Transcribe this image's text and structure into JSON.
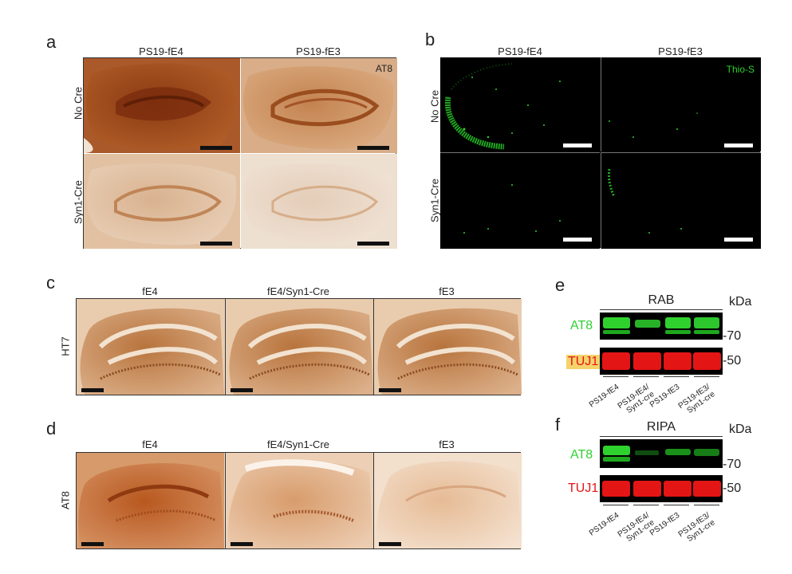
{
  "panels": {
    "a": {
      "letter": "a",
      "columns": [
        "PS19-fE4",
        "PS19-fE3"
      ],
      "rows": [
        "No Cre",
        "Syn1-Cre"
      ],
      "stain": "AT8"
    },
    "b": {
      "letter": "b",
      "columns": [
        "PS19-fE4",
        "PS19-fE3"
      ],
      "rows": [
        "No Cre",
        "Syn1-Cre"
      ],
      "stain": "Thio-S"
    },
    "c": {
      "letter": "c",
      "columns": [
        "fE4",
        "fE4/Syn1-Cre",
        "fE3"
      ],
      "row": "HT7"
    },
    "d": {
      "letter": "d",
      "columns": [
        "fE4",
        "fE4/Syn1-Cre",
        "fE3"
      ],
      "row": "AT8"
    },
    "e": {
      "letter": "e",
      "fraction": "RAB",
      "kda_unit": "kDa",
      "bands": [
        "AT8",
        "TUJ1"
      ],
      "markers": [
        "70",
        "50"
      ],
      "lanes": [
        "PS19-fE4",
        "PS19-fE4/\nSyn1-cre",
        "PS19-fE3",
        "PS19-fE3/\nSyn1-cre"
      ]
    },
    "f": {
      "letter": "f",
      "fraction": "RIPA",
      "kda_unit": "kDa",
      "bands": [
        "AT8",
        "TUJ1"
      ],
      "markers": [
        "70",
        "50"
      ],
      "lanes": [
        "PS19-fE4",
        "PS19-fE4/\nSyn1-cre",
        "PS19-fE3",
        "PS19-fE3/\nSyn1-cre"
      ]
    }
  },
  "colors": {
    "green": "#2fd12f",
    "red": "#e31515",
    "tuj1_highlight": "#f5d36b",
    "scalebar_dark": "#111111",
    "scalebar_light": "#ffffff"
  }
}
